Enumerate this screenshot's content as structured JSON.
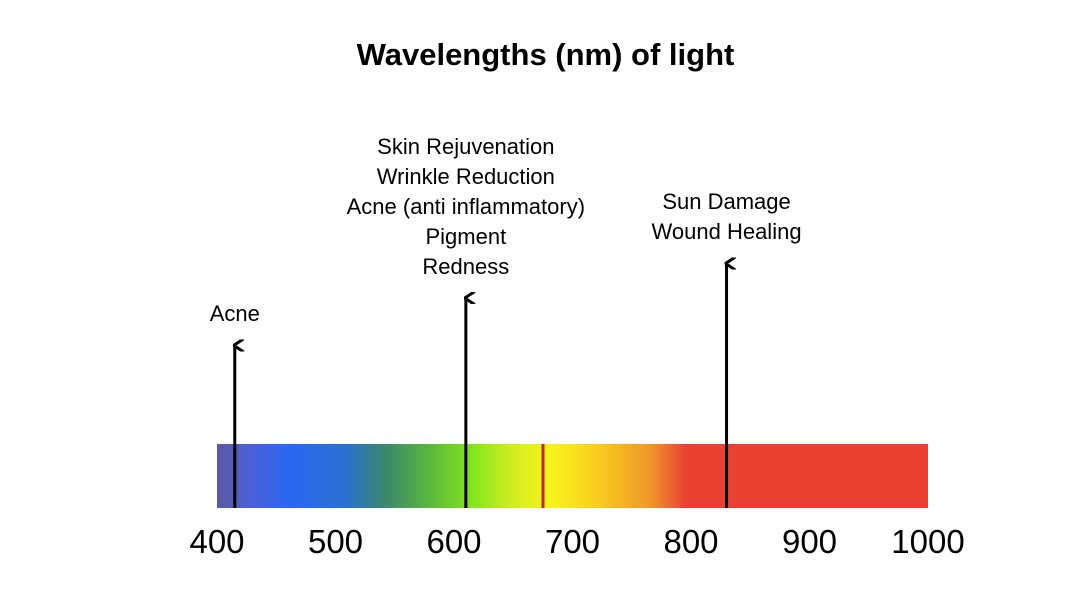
{
  "title": "Wavelengths (nm) of light",
  "axis": {
    "min": 400,
    "max": 1000,
    "ticks": [
      "400",
      "500",
      "600",
      "700",
      "800",
      "900",
      "1000"
    ]
  },
  "spectrum_colors": {
    "violet": "#5a5aa0",
    "blue": "#2a66f2",
    "green": "#84e61e",
    "yellow": "#f8f21c",
    "orange": "#f0962a",
    "red": "#e84032",
    "red_boundary": "#b82c26"
  },
  "markers": [
    {
      "wavelength": 415,
      "height_level": 0.52,
      "lines": [
        "Acne"
      ]
    },
    {
      "wavelength": 610,
      "height_level": 0.78,
      "lines": [
        "Skin Rejuvenation",
        "Wrinkle Reduction",
        "Acne (anti inflammatory)",
        "Pigment",
        "Redness"
      ]
    },
    {
      "wavelength": 830,
      "height_level": 0.97,
      "lines": [
        "Sun Damage",
        "Wound Healing"
      ]
    }
  ]
}
